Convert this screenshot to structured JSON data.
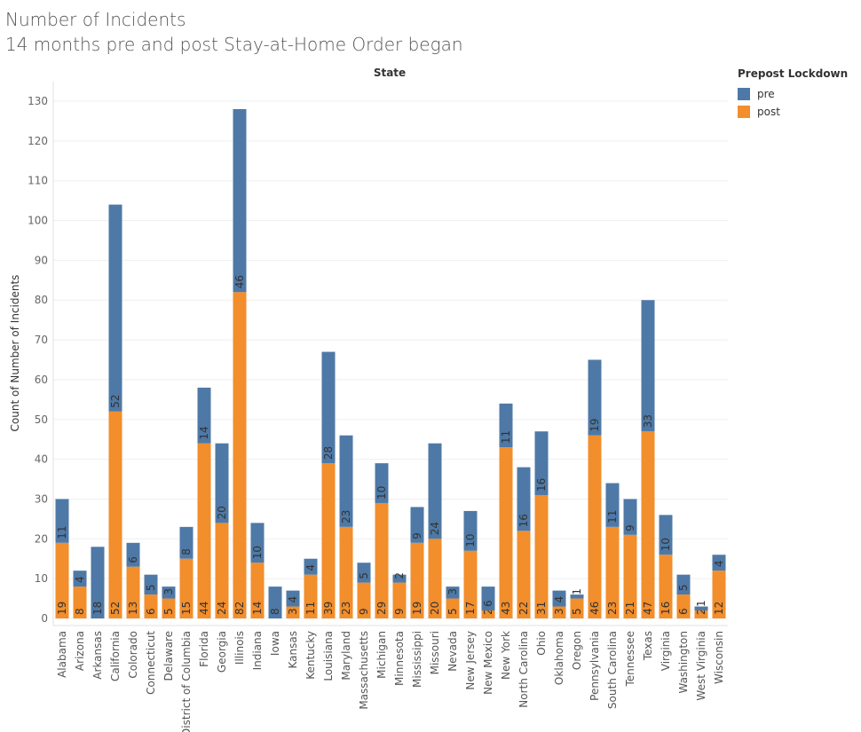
{
  "title_line1": "Number of Incidents",
  "title_line2": "14 months pre and post Stay-at-Home Order began",
  "legend": {
    "title": "Prepost Lockdown",
    "items": [
      {
        "label": "pre",
        "color": "#4e79a7"
      },
      {
        "label": "post",
        "color": "#f28e2b"
      }
    ]
  },
  "chart_data": {
    "type": "bar",
    "stacked": true,
    "column_header": "State",
    "ylabel": "Count of Number of Incidents",
    "ylim": [
      0,
      130
    ],
    "yticks": [
      0,
      10,
      20,
      30,
      40,
      50,
      60,
      70,
      80,
      90,
      100,
      110,
      120,
      130
    ],
    "grid": true,
    "legend_position": "top-right",
    "categories": [
      "Alabama",
      "Arizona",
      "Arkansas",
      "California",
      "Colorado",
      "Connecticut",
      "Delaware",
      "District of Columbia",
      "Florida",
      "Georgia",
      "Illinois",
      "Indiana",
      "Iowa",
      "Kansas",
      "Kentucky",
      "Louisiana",
      "Maryland",
      "Massachusetts",
      "Michigan",
      "Minnesota",
      "Mississippi",
      "Missouri",
      "Nevada",
      "New Jersey",
      "New Mexico",
      "New York",
      "North Carolina",
      "Ohio",
      "Oklahoma",
      "Oregon",
      "Pennsylvania",
      "South Carolina",
      "Tennessee",
      "Texas",
      "Virginia",
      "Washington",
      "West Virginia",
      "Wisconsin"
    ],
    "series": [
      {
        "name": "post",
        "color": "#f28e2b",
        "values": [
          19,
          8,
          null,
          52,
          13,
          6,
          5,
          15,
          44,
          24,
          82,
          14,
          null,
          3,
          11,
          39,
          23,
          9,
          29,
          9,
          19,
          20,
          5,
          17,
          2,
          43,
          22,
          31,
          3,
          5,
          46,
          23,
          21,
          47,
          16,
          6,
          2,
          12
        ]
      },
      {
        "name": "pre",
        "color": "#4e79a7",
        "values": [
          11,
          4,
          18,
          52,
          6,
          5,
          3,
          8,
          14,
          20,
          46,
          10,
          8,
          4,
          4,
          28,
          23,
          5,
          10,
          2,
          9,
          24,
          3,
          10,
          6,
          11,
          16,
          16,
          4,
          1,
          19,
          11,
          9,
          33,
          10,
          5,
          1,
          4
        ]
      }
    ]
  }
}
